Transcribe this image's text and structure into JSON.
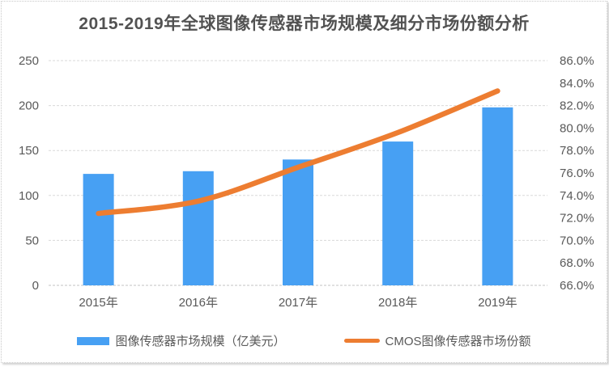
{
  "chart_data": {
    "type": "combo",
    "subtypes": [
      "bar",
      "line"
    ],
    "title": "2015-2019年全球图像传感器市场规模及细分市场份额分析",
    "categories": [
      "2015年",
      "2016年",
      "2017年",
      "2018年",
      "2019年"
    ],
    "series": [
      {
        "name": "图像传感器市场规模（亿美元）",
        "type": "bar",
        "axis": "left",
        "color": "#47A0F3",
        "values": [
          124,
          127,
          140,
          160,
          198
        ]
      },
      {
        "name": "CMOS图像传感器市场份额",
        "type": "line",
        "axis": "right",
        "color": "#ED7D31",
        "values": [
          72.4,
          73.5,
          76.5,
          79.6,
          83.3
        ]
      }
    ],
    "left_axis": {
      "min": 0,
      "max": 250,
      "step": 50,
      "tick_labels": [
        "0",
        "50",
        "100",
        "150",
        "200",
        "250"
      ]
    },
    "right_axis": {
      "min": 66,
      "max": 86,
      "step": 2,
      "tick_labels": [
        "66.0%",
        "68.0%",
        "70.0%",
        "72.0%",
        "74.0%",
        "76.0%",
        "78.0%",
        "80.0%",
        "82.0%",
        "84.0%",
        "86.0%"
      ]
    },
    "grid": {
      "show": true,
      "style": "dashed",
      "color": "#D9D9D9"
    },
    "legend_position": "bottom",
    "styles": {
      "axis_text_color": "#595959",
      "title_color": "#525252",
      "background": "#FFFFFF",
      "border_color": "#C9C9C9",
      "baseline_color": "#C3C3C3"
    }
  }
}
